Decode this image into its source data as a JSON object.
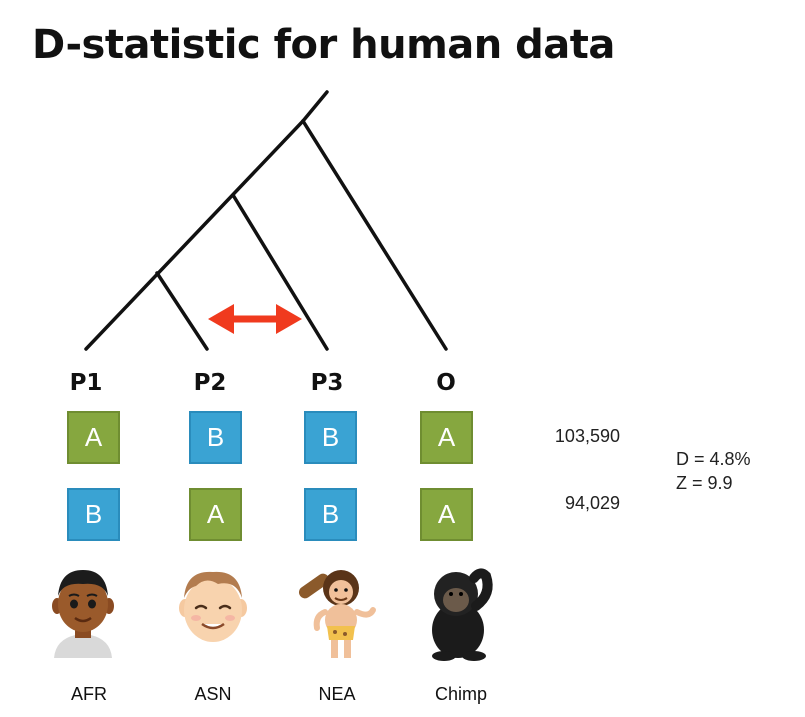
{
  "title": "D-statistic for human data",
  "populations": [
    {
      "label": "P1",
      "name": "AFR",
      "avatar": "african-boy-avatar"
    },
    {
      "label": "P2",
      "name": "ASN",
      "avatar": "asian-boy-avatar"
    },
    {
      "label": "P3",
      "name": "NEA",
      "avatar": "neanderthal-avatar"
    },
    {
      "label": "O",
      "name": "Chimp",
      "avatar": "chimpanzee-avatar"
    }
  ],
  "patterns": [
    {
      "alleles": [
        "A",
        "B",
        "B",
        "A"
      ],
      "count": "103,590"
    },
    {
      "alleles": [
        "B",
        "A",
        "B",
        "A"
      ],
      "count": "94,029"
    }
  ],
  "stats": {
    "d": "D = 4.8%",
    "z": "Z = 9.9"
  },
  "colors": {
    "A": "#86a73f",
    "B": "#3aa3d3",
    "arrow": "#f03a1e"
  },
  "annotation": "gene-flow-double-arrow"
}
